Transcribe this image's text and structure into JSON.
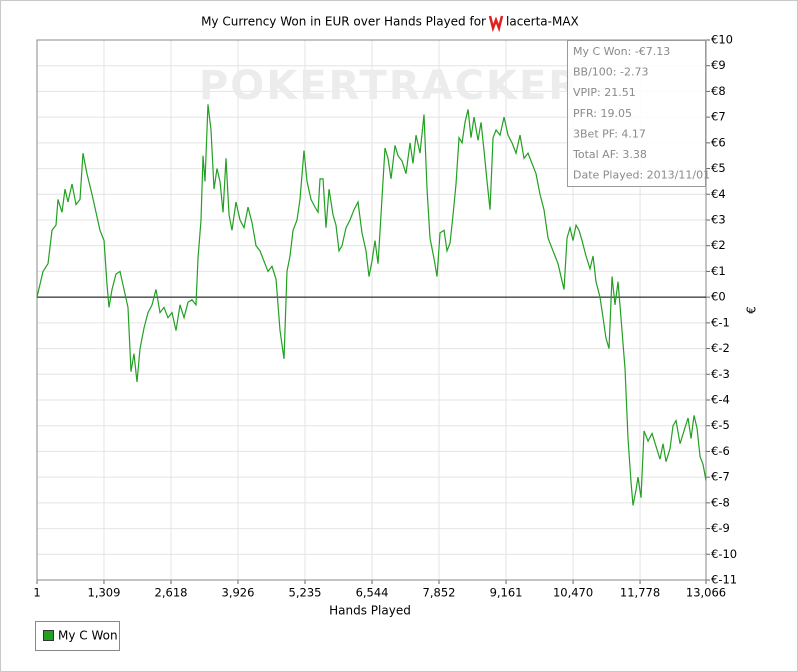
{
  "chart_data": {
    "type": "line",
    "title": "My Currency Won in EUR over Hands Played for",
    "player": "lacerta-MAX",
    "watermark": "POKERTRACKER",
    "x_label": "Hands Played",
    "y_label": "€",
    "grid": true,
    "xlim": [
      1,
      13066
    ],
    "ylim": [
      -11,
      10
    ],
    "xticks": [
      1,
      {
        "value": 1309,
        "label": "1,309"
      },
      {
        "value": 2618,
        "label": "2,618"
      },
      {
        "value": 3926,
        "label": "3,926"
      },
      {
        "value": 5235,
        "label": "5,235"
      },
      {
        "value": 6544,
        "label": "6,544"
      },
      {
        "value": 7852,
        "label": "7,852"
      },
      {
        "value": 9161,
        "label": "9,161"
      },
      {
        "value": 10470,
        "label": "10,470"
      },
      {
        "value": 11778,
        "label": "11,778"
      },
      {
        "value": 13066,
        "label": "13,066"
      }
    ],
    "yticks": [
      {
        "value": 10,
        "label": "€10"
      },
      {
        "value": 9,
        "label": "€9"
      },
      {
        "value": 8,
        "label": "€8"
      },
      {
        "value": 7,
        "label": "€7"
      },
      {
        "value": 6,
        "label": "€6"
      },
      {
        "value": 5,
        "label": "€5"
      },
      {
        "value": 4,
        "label": "€4"
      },
      {
        "value": 3,
        "label": "€3"
      },
      {
        "value": 2,
        "label": "€2"
      },
      {
        "value": 1,
        "label": "€1"
      },
      {
        "value": 0,
        "label": "€0"
      },
      {
        "value": -1,
        "label": "€-1"
      },
      {
        "value": -2,
        "label": "€-2"
      },
      {
        "value": -3,
        "label": "€-3"
      },
      {
        "value": -4,
        "label": "€-4"
      },
      {
        "value": -5,
        "label": "€-5"
      },
      {
        "value": -6,
        "label": "€-6"
      },
      {
        "value": -7,
        "label": "€-7"
      },
      {
        "value": -8,
        "label": "€-8"
      },
      {
        "value": -9,
        "label": "€-9"
      },
      {
        "value": -10,
        "label": "€-10"
      },
      {
        "value": -11,
        "label": "€-11"
      }
    ],
    "stats": [
      "My C Won: -€7.13",
      "BB/100: -2.73",
      "VPIP: 21.51",
      "PFR: 19.05",
      "3Bet PF: 4.17",
      "Total AF: 3.38",
      "Date Played: 2013/11/01"
    ],
    "x": [
      1,
      60,
      118,
      216,
      294,
      372,
      411,
      489,
      548,
      606,
      685,
      763,
      841,
      899,
      977,
      1075,
      1153,
      1231,
      1310,
      1368,
      1407,
      1466,
      1544,
      1622,
      1700,
      1778,
      1837,
      1895,
      1954,
      2013,
      2091,
      2169,
      2247,
      2325,
      2403,
      2481,
      2559,
      2638,
      2716,
      2794,
      2872,
      2950,
      3028,
      3106,
      3145,
      3204,
      3243,
      3282,
      3340,
      3399,
      3458,
      3516,
      3575,
      3634,
      3692,
      3751,
      3809,
      3887,
      3966,
      4044,
      4122,
      4200,
      4278,
      4356,
      4434,
      4512,
      4590,
      4669,
      4747,
      4825,
      4883,
      4942,
      5001,
      5079,
      5137,
      5215,
      5274,
      5352,
      5430,
      5489,
      5528,
      5587,
      5645,
      5704,
      5782,
      5840,
      5899,
      5958,
      6036,
      6114,
      6192,
      6270,
      6348,
      6426,
      6485,
      6543,
      6602,
      6661,
      6719,
      6797,
      6856,
      6915,
      6993,
      7051,
      7129,
      7207,
      7286,
      7344,
      7403,
      7481,
      7559,
      7618,
      7676,
      7754,
      7813,
      7872,
      7950,
      8008,
      8067,
      8126,
      8184,
      8243,
      8302,
      8360,
      8419,
      8477,
      8536,
      8614,
      8673,
      8731,
      8790,
      8848,
      8907,
      8966,
      9044,
      9122,
      9200,
      9278,
      9356,
      9434,
      9512,
      9590,
      9668,
      9746,
      9824,
      9902,
      9981,
      10039,
      10098,
      10176,
      10234,
      10293,
      10352,
      10410,
      10469,
      10528,
      10586,
      10645,
      10723,
      10801,
      10860,
      10918,
      10996,
      11055,
      11113,
      11172,
      11231,
      11289,
      11348,
      11406,
      11485,
      11543,
      11602,
      11641,
      11699,
      11738,
      11797,
      11856,
      11934,
      12012,
      12090,
      12168,
      12227,
      12285,
      12363,
      12422,
      12481,
      12559,
      12637,
      12715,
      12774,
      12832,
      12891,
      12950,
      13008,
      13066
    ],
    "series": [
      {
        "name": "My C Won",
        "color": "#22a022",
        "values": [
          0,
          0.5,
          1,
          1.3,
          2.6,
          2.8,
          3.8,
          3.3,
          4.2,
          3.7,
          4.4,
          3.6,
          3.8,
          5.6,
          4.8,
          4,
          3.3,
          2.6,
          2.2,
          0.5,
          -0.4,
          0.3,
          0.9,
          1,
          0.3,
          -0.4,
          -2.9,
          -2.2,
          -3.3,
          -2,
          -1.2,
          -0.6,
          -0.3,
          0.3,
          -0.6,
          -0.4,
          -0.8,
          -0.6,
          -1.3,
          -0.3,
          -0.8,
          -0.2,
          -0.1,
          -0.3,
          1.5,
          3,
          5.5,
          4.5,
          7.5,
          6.5,
          4.2,
          5,
          4.5,
          3.3,
          5.4,
          3.2,
          2.6,
          3.7,
          3,
          2.7,
          3.5,
          2.9,
          2,
          1.8,
          1.4,
          1,
          1.2,
          0.7,
          -1.3,
          -2.4,
          1,
          1.6,
          2.6,
          3,
          3.8,
          5.7,
          4.5,
          3.8,
          3.5,
          3.3,
          4.6,
          4.6,
          2.7,
          4.2,
          3.2,
          2.8,
          1.8,
          2,
          2.7,
          3,
          3.4,
          3.7,
          2.5,
          1.8,
          0.8,
          1.4,
          2.2,
          1.3,
          3.2,
          5.8,
          5.4,
          4.6,
          5.9,
          5.5,
          5.3,
          4.8,
          6,
          5.2,
          6.3,
          5.6,
          7.1,
          4.2,
          2.3,
          1.5,
          0.8,
          2.5,
          2.6,
          1.8,
          2.1,
          3.2,
          4.4,
          6.2,
          6,
          6.8,
          7.3,
          6.2,
          7,
          6.1,
          6.8,
          5.7,
          4.5,
          3.4,
          6.2,
          6.5,
          6.3,
          7,
          6.3,
          6,
          5.6,
          6.3,
          5.4,
          5.6,
          5.2,
          4.8,
          4,
          3.4,
          2.3,
          2,
          1.7,
          1.3,
          0.8,
          0.3,
          2.3,
          2.7,
          2.2,
          2.8,
          2.6,
          2.2,
          1.6,
          1.1,
          1.6,
          0.6,
          0,
          -0.8,
          -1.6,
          -2,
          0.8,
          -0.3,
          0.6,
          -0.8,
          -2.8,
          -5.5,
          -7.2,
          -8.1,
          -7.5,
          -7,
          -7.8,
          -5.2,
          -5.6,
          -5.3,
          -5.8,
          -6.3,
          -5.7,
          -6.4,
          -5.9,
          -5,
          -4.8,
          -5.7,
          -5.2,
          -4.7,
          -5.5,
          -4.6,
          -5.1,
          -6.2,
          -6.5,
          -7.13
        ]
      }
    ]
  }
}
